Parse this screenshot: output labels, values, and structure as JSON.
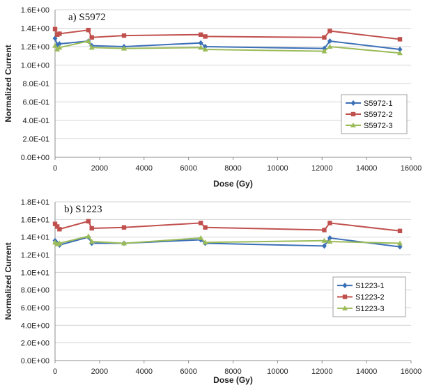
{
  "chart_data": [
    {
      "type": "line",
      "title": "a) S5972",
      "xlabel": "Dose (Gy)",
      "ylabel": "Normalized Current",
      "xlim": [
        0,
        16000
      ],
      "ylim": [
        0,
        1.6
      ],
      "xticks": [
        0,
        2000,
        4000,
        6000,
        8000,
        10000,
        12000,
        14000,
        16000
      ],
      "xtick_labels": [
        "0",
        "2000",
        "4000",
        "6000",
        "8000",
        "10000",
        "12000",
        "14000",
        "16000"
      ],
      "yticks": [
        0,
        0.2,
        0.4,
        0.6,
        0.8,
        1.0,
        1.2,
        1.4,
        1.6
      ],
      "ytick_labels": [
        "0.0E+00",
        "2.0E-01",
        "4.0E-01",
        "6.0E-01",
        "8.0E-01",
        "1.0E+00",
        "1.2E+00",
        "1.4E+00",
        "1.6E+00"
      ],
      "grid": "horizontal",
      "legend_position": "right",
      "series": [
        {
          "name": "S5972-1",
          "color": "#3b6fb6",
          "marker": "diamond",
          "x": [
            0,
            100,
            200,
            1500,
            1650,
            3100,
            6550,
            6750,
            12100,
            12350,
            15500
          ],
          "y": [
            1.29,
            1.22,
            1.23,
            1.26,
            1.21,
            1.2,
            1.24,
            1.2,
            1.18,
            1.26,
            1.17
          ]
        },
        {
          "name": "S5972-2",
          "color": "#c0504d",
          "marker": "square",
          "x": [
            0,
            100,
            200,
            1500,
            1650,
            3100,
            6550,
            6750,
            12100,
            12350,
            15500
          ],
          "y": [
            1.39,
            1.33,
            1.34,
            1.38,
            1.3,
            1.32,
            1.33,
            1.31,
            1.3,
            1.37,
            1.28
          ]
        },
        {
          "name": "S5972-3",
          "color": "#9bbb59",
          "marker": "triangle",
          "x": [
            0,
            100,
            200,
            1500,
            1650,
            3100,
            6550,
            6750,
            12100,
            12350,
            15500
          ],
          "y": [
            1.21,
            1.17,
            1.19,
            1.26,
            1.19,
            1.18,
            1.19,
            1.17,
            1.15,
            1.2,
            1.13
          ]
        }
      ]
    },
    {
      "type": "line",
      "title": "b) S1223",
      "xlabel": "Dose (Gy)",
      "ylabel": "Normalized Current",
      "xlim": [
        0,
        16000
      ],
      "ylim": [
        0,
        18
      ],
      "xticks": [
        0,
        2000,
        4000,
        6000,
        8000,
        10000,
        12000,
        14000,
        16000
      ],
      "xtick_labels": [
        "0",
        "2000",
        "4000",
        "6000",
        "8000",
        "10000",
        "12000",
        "14000",
        "16000"
      ],
      "yticks": [
        0,
        2,
        4,
        6,
        8,
        10,
        12,
        14,
        16,
        18
      ],
      "ytick_labels": [
        "0.0E+00",
        "2.0E+00",
        "4.0E+00",
        "6.0E+00",
        "8.0E+00",
        "1.0E+01",
        "1.2E+01",
        "1.4E+01",
        "1.6E+01",
        "1.8E+01"
      ],
      "grid": "horizontal",
      "legend_position": "right",
      "series": [
        {
          "name": "S1223-1",
          "color": "#3b6fb6",
          "marker": "diamond",
          "x": [
            0,
            100,
            200,
            1500,
            1650,
            3100,
            6550,
            6750,
            12100,
            12350,
            15500
          ],
          "y": [
            13.6,
            13.3,
            13.1,
            14.0,
            13.3,
            13.3,
            13.7,
            13.3,
            13.0,
            13.9,
            12.9
          ]
        },
        {
          "name": "S1223-2",
          "color": "#c0504d",
          "marker": "square",
          "x": [
            0,
            100,
            200,
            1500,
            1650,
            3100,
            6550,
            6750,
            12100,
            12350,
            15500
          ],
          "y": [
            15.5,
            15.2,
            14.9,
            15.8,
            15.0,
            15.1,
            15.6,
            15.1,
            14.8,
            15.6,
            14.7
          ]
        },
        {
          "name": "S1223-3",
          "color": "#9bbb59",
          "marker": "triangle",
          "x": [
            0,
            100,
            200,
            1500,
            1650,
            3100,
            6550,
            6750,
            12100,
            12350,
            15500
          ],
          "y": [
            13.4,
            13.2,
            13.3,
            14.1,
            13.5,
            13.3,
            13.9,
            13.4,
            13.6,
            13.5,
            13.3
          ]
        }
      ]
    }
  ]
}
